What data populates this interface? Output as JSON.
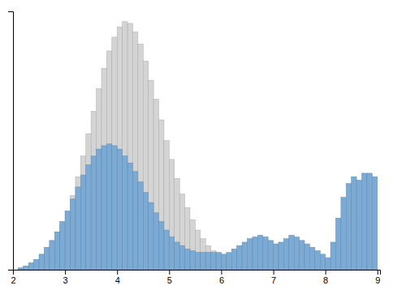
{
  "chart_data": {
    "type": "histogram",
    "bins": [
      2,
      2.1,
      2.2,
      2.3,
      2.4,
      2.5,
      2.6,
      2.7,
      2.8,
      2.9,
      3,
      3.1,
      3.2,
      3.3,
      3.4,
      3.5,
      3.6,
      3.7,
      3.8,
      3.9,
      4,
      4.1,
      4.2,
      4.3,
      4.4,
      4.5,
      4.6,
      4.7,
      4.8,
      4.9,
      5,
      5.1,
      5.2,
      5.3,
      5.4,
      5.5,
      5.6,
      5.7,
      5.8,
      5.9,
      6,
      6.1,
      6.2,
      6.3,
      6.4,
      6.5,
      6.6,
      6.7,
      6.8,
      6.9,
      7,
      7.1,
      7.2,
      7.3,
      7.4,
      7.5,
      7.6,
      7.7,
      7.8,
      7.9,
      8,
      8.1,
      8.2,
      8.3,
      8.4,
      8.5,
      8.6,
      8.7,
      8.8,
      8.9,
      9
    ],
    "series": [
      {
        "color": "#d4d4d4",
        "values": [
          0,
          1,
          2,
          3,
          5,
          7,
          10,
          14,
          19,
          26,
          34,
          43,
          54,
          66,
          79,
          92,
          105,
          117,
          127,
          135,
          141,
          144,
          143,
          138,
          131,
          121,
          110,
          99,
          87,
          75,
          64,
          53,
          44,
          36,
          29,
          23,
          18,
          14,
          11,
          8,
          6,
          5,
          4,
          3,
          3,
          2,
          2,
          2,
          1,
          1,
          1,
          1,
          1,
          0,
          0,
          0,
          0,
          0,
          0,
          0,
          0,
          0,
          0,
          0,
          0,
          0,
          0,
          0,
          0,
          0
        ]
      },
      {
        "color": "#7baad4",
        "values": [
          0,
          1,
          2,
          4,
          6,
          9,
          13,
          17,
          22,
          28,
          34,
          41,
          48,
          55,
          61,
          66,
          70,
          72,
          73,
          72,
          70,
          66,
          62,
          57,
          51,
          45,
          39,
          33,
          28,
          23,
          19,
          16,
          14,
          12,
          11,
          10,
          10,
          10,
          10,
          10,
          9,
          10,
          12,
          14,
          16,
          18,
          19,
          20,
          19,
          17,
          15,
          16,
          18,
          20,
          19,
          17,
          15,
          13,
          11,
          9,
          7,
          16,
          30,
          42,
          50,
          54,
          52,
          56,
          56,
          54
        ]
      }
    ],
    "xlim": [
      2.0,
      9.05
    ],
    "ylim": [
      0,
      150
    ],
    "xticks": [
      2,
      3,
      4,
      5,
      6,
      7,
      8,
      9
    ],
    "tick_labels": "x",
    "grid": false
  }
}
